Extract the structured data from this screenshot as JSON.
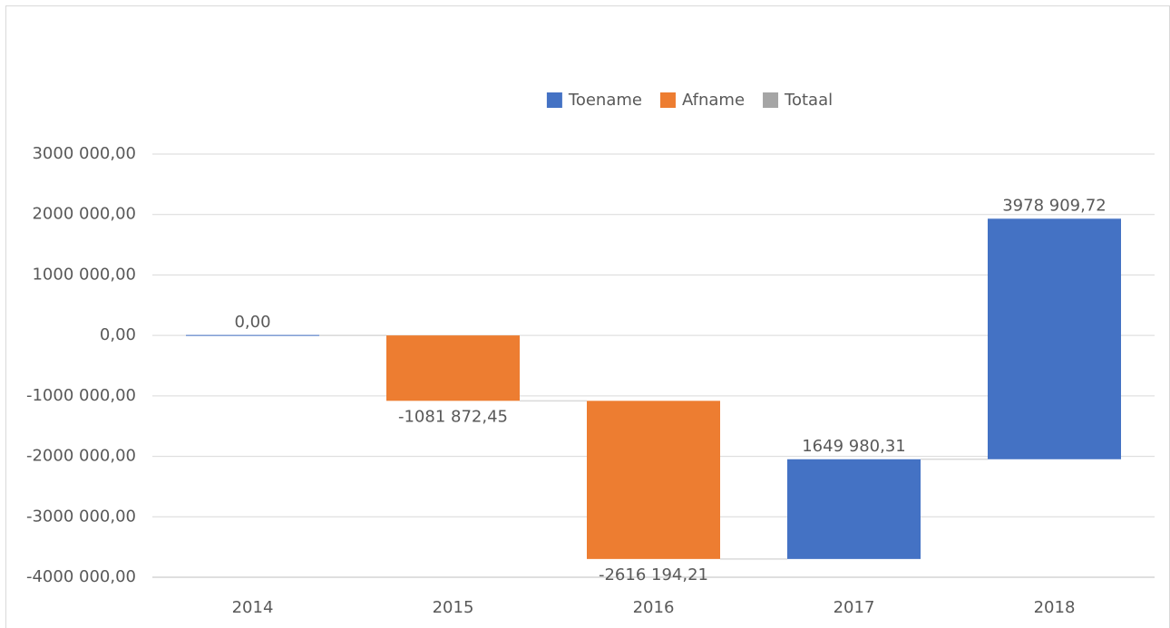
{
  "chart_data": {
    "type": "waterfall",
    "categories": [
      "2014",
      "2015",
      "2016",
      "2017",
      "2018"
    ],
    "values": [
      0,
      -1081872.45,
      -2616194.21,
      1649980.31,
      3978909.72
    ],
    "value_labels": [
      "0,00",
      "-1081 872,45",
      "-2616 194,21",
      "1649 980,31",
      "3978 909,72"
    ],
    "series": [
      {
        "name": "Toename",
        "color": "#4472c4"
      },
      {
        "name": "Afname",
        "color": "#ed7d31"
      },
      {
        "name": "Totaal",
        "color": "#a5a5a5"
      }
    ],
    "ylim": [
      -4000000,
      3000000
    ],
    "yticks": [
      {
        "value": -4000000,
        "label": "-4000 000,00"
      },
      {
        "value": -3000000,
        "label": "-3000 000,00"
      },
      {
        "value": -2000000,
        "label": "-2000 000,00"
      },
      {
        "value": -1000000,
        "label": "-1000 000,00"
      },
      {
        "value": 0,
        "label": "0,00"
      },
      {
        "value": 1000000,
        "label": "1000 000,00"
      },
      {
        "value": 2000000,
        "label": "2000 000,00"
      },
      {
        "value": 3000000,
        "label": "3000 000,00"
      }
    ],
    "grid": true,
    "legend": "top"
  }
}
